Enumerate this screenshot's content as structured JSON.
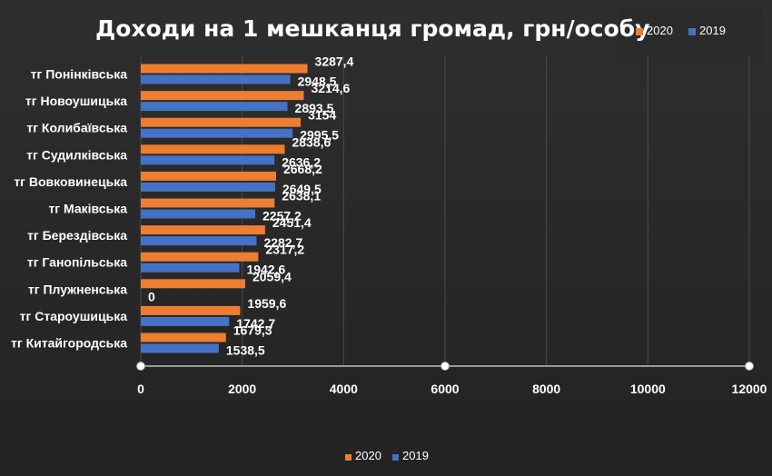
{
  "chart_data": {
    "type": "bar",
    "orientation": "horizontal",
    "title": "Доходи на 1 мешканця громад, грн/особу",
    "categories": [
      "тг Понінківська",
      "тг Новоушицька",
      "тг Колибаївська",
      "тг Судилківська",
      "тг Вовковинецька",
      "тг Маківська",
      "тг Берездівська",
      "тг Ганопільська",
      "тг Плужненська",
      "тг Староушицька",
      "тг Китайгородська"
    ],
    "series": [
      {
        "name": "2020",
        "color": "#ED7D31",
        "values": [
          3287.4,
          3214.6,
          3154,
          2838.6,
          2668.2,
          2638.1,
          2451.4,
          2317.2,
          2059.4,
          1959.6,
          1679.3
        ],
        "labels": [
          "3287,4",
          "3214,6",
          "3154",
          "2838,6",
          "2668,2",
          "2638,1",
          "2451,4",
          "2317,2",
          "2059,4",
          "1959,6",
          "1679,3"
        ]
      },
      {
        "name": "2019",
        "color": "#4472C4",
        "values": [
          2948.5,
          2893.5,
          2995.5,
          2636.2,
          2649.5,
          2257.2,
          2282.7,
          1942.6,
          0,
          1742.7,
          1538.5
        ],
        "labels": [
          "2948,5",
          "2893,5",
          "2995,5",
          "2636,2",
          "2649,5",
          "2257,2",
          "2282,7",
          "1942,6",
          "0",
          "1742,7",
          "1538,5"
        ]
      }
    ],
    "xlim": [
      0,
      12000
    ],
    "xticks": [
      "0",
      "2000",
      "4000",
      "6000",
      "8000",
      "10000",
      "12000"
    ],
    "grid": true,
    "legend_position": "top-right and bottom"
  }
}
